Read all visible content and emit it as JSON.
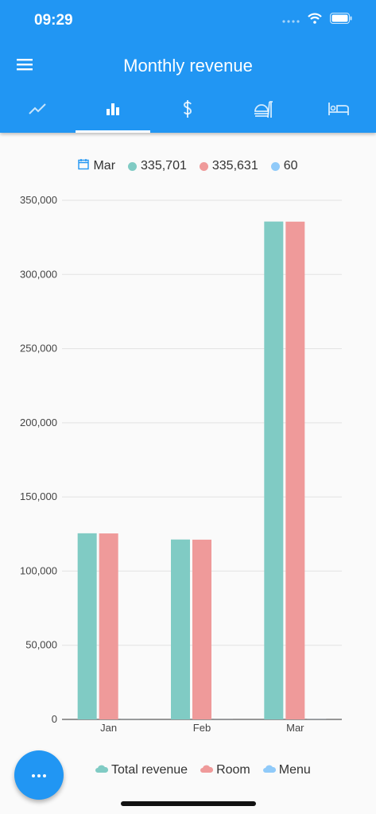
{
  "status": {
    "time": "09:29"
  },
  "header": {
    "title": "Monthly revenue"
  },
  "tabs": [
    {
      "icon": "trending-up-icon",
      "active": false
    },
    {
      "icon": "bar-chart-icon",
      "active": true
    },
    {
      "icon": "dollar-icon",
      "active": false
    },
    {
      "icon": "food-service-icon",
      "active": false
    },
    {
      "icon": "hotel-bed-icon",
      "active": false
    }
  ],
  "summary": {
    "month": "Mar",
    "total": "335,701",
    "room": "335,631",
    "menu": "60"
  },
  "colors": {
    "primary": "#2196f3",
    "total": "#80cbc4",
    "room": "#ef9a9a",
    "menu": "#90caf9"
  },
  "legend": {
    "total": "Total revenue",
    "room": "Room",
    "menu": "Menu"
  },
  "chart_data": {
    "type": "bar",
    "categories": [
      "Jan",
      "Feb",
      "Mar"
    ],
    "series": [
      {
        "name": "Total revenue",
        "values": [
          125500,
          121300,
          335701
        ]
      },
      {
        "name": "Room",
        "values": [
          125400,
          121200,
          335631
        ]
      },
      {
        "name": "Menu",
        "values": [
          40,
          30,
          60
        ]
      }
    ],
    "yticks": [
      "0",
      "50,000",
      "100,000",
      "150,000",
      "200,000",
      "250,000",
      "300,000",
      "350,000"
    ],
    "ylim": [
      0,
      350000
    ],
    "grid": true,
    "legend": "bottom"
  }
}
